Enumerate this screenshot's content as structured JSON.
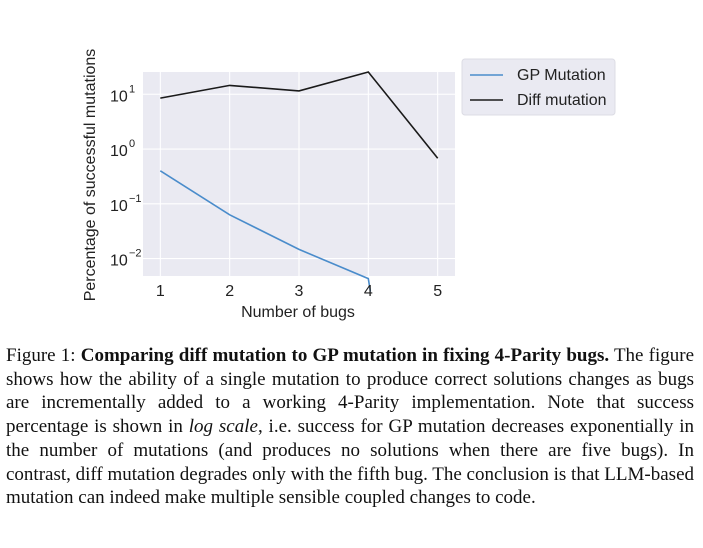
{
  "chart_data": {
    "type": "line",
    "yscale": "log",
    "x": [
      1,
      2,
      3,
      4,
      5
    ],
    "xticks": [
      "1",
      "2",
      "3",
      "4",
      "5"
    ],
    "yticks": [
      {
        "base": "10",
        "exp": "−2",
        "value": 0.01
      },
      {
        "base": "10",
        "exp": "−1",
        "value": 0.1
      },
      {
        "base": "10",
        "exp": "0",
        "value": 1
      },
      {
        "base": "10",
        "exp": "1",
        "value": 10
      }
    ],
    "xlabel": "Number of bugs",
    "ylabel": "Percentage of successful mutations",
    "xlim": [
      0.75,
      5.25
    ],
    "ylim": [
      0.0048,
      25.5
    ],
    "grid": true,
    "legend_position": "outside-right",
    "series": [
      {
        "name": "GP Mutation",
        "color": "#4a8ccb",
        "x": [
          1,
          2,
          3,
          4,
          4.03
        ],
        "values": [
          0.4,
          0.063,
          0.0147,
          0.0043,
          0.0025
        ]
      },
      {
        "name": "Diff mutation",
        "color": "#1a1a1a",
        "x": [
          1,
          2,
          3,
          4,
          5
        ],
        "values": [
          8.5,
          14.5,
          11.5,
          25.5,
          0.68
        ]
      }
    ]
  },
  "caption": {
    "figure_label": "Figure 1:",
    "title": "Comparing diff mutation to GP mutation in fixing 4-Parity bugs.",
    "body_part1": "The figure shows how the ability of a single mutation to produce correct solutions changes as bugs are incrementally added to a working 4-Parity implementation. Note that success percentage is shown in",
    "log_scale": "log scale",
    "body_part2": ", i.e. success for GP mutation decreases exponentially in the number of mutations (and produces no solutions when there are five bugs). In contrast, diff mutation degrades only with the fifth bug. The conclusion is that LLM-based mutation can indeed make multiple sensible coupled changes to code."
  },
  "colors": {
    "plot_background": "#e9e9f0",
    "grid": "#ffffff",
    "tick_text": "#222222"
  }
}
